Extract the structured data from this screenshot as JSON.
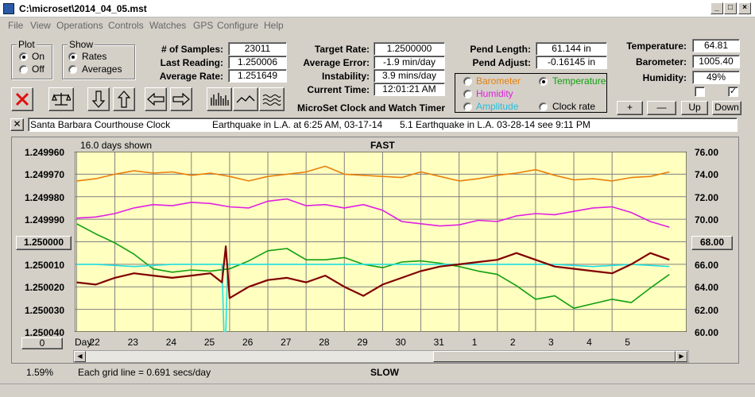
{
  "window": {
    "title": "C:\\microset\\2014_04_05.mst"
  },
  "menu": [
    "File",
    "View",
    "Operations",
    "Controls",
    "Watches",
    "GPS",
    "Configure",
    "Help"
  ],
  "plot_group": {
    "title": "Plot",
    "on": "On",
    "off": "Off",
    "selected": "On"
  },
  "show_group": {
    "title": "Show",
    "rates": "Rates",
    "averages": "Averages",
    "selected": "Rates"
  },
  "stats": {
    "samples_label": "# of Samples:",
    "samples": "23011",
    "last_reading_label": "Last Reading:",
    "last_reading": "1.250006",
    "average_rate_label": "Average Rate:",
    "average_rate": "1.251649"
  },
  "targets": {
    "target_rate_label": "Target Rate:",
    "target_rate": "1.2500000",
    "average_error_label": "Average Error:",
    "average_error": "-1.9 min/day",
    "instability_label": "Instability:",
    "instability": "3.9 mins/day",
    "current_time_label": "Current Time:",
    "current_time": "12:01:21 AM"
  },
  "pendulum": {
    "length_label": "Pend Length:",
    "length": "61.144 in",
    "adjust_label": "Pend Adjust:",
    "adjust": "-0.16145 in"
  },
  "sensor_select": {
    "barometer": "Barometer",
    "temperature": "Temperature",
    "humidity": "Humidity",
    "amplitude": "Amplitude",
    "clock_rate": "Clock rate",
    "selected": "Temperature"
  },
  "environment": {
    "temperature_label": "Temperature:",
    "temperature": "64.81",
    "barometer_label": "Barometer:",
    "barometer": "1005.40",
    "humidity_label": "Humidity:",
    "humidity": "49%",
    "check2_mark": "✓"
  },
  "adjust_buttons": {
    "plus": "+",
    "minus": "—",
    "up": "Up",
    "down": "Down"
  },
  "app_caption": "MicroSet Clock and Watch Timer",
  "notes": {
    "clock_name": "Santa Barbara Courthouse Clock",
    "note1": "Earthquake in L.A. at 6:25 AM, 03-17-14",
    "note2": "5.1 Earthquake in L.A. 03-28-14  see 9:11 PM"
  },
  "chart": {
    "days_shown": "16.0 days shown",
    "top_label": "FAST",
    "bottom_label": "SLOW",
    "grid_note": "Each grid line = 0.691 secs/day",
    "percent": "1.59%",
    "day_label": "Day:",
    "left_center_value": "1.250000",
    "right_center_value": "68.00",
    "left_bottom_button": "0"
  },
  "chart_data": {
    "type": "line",
    "y_left_ticks": [
      "1.249960",
      "1.249970",
      "1.249980",
      "1.249990",
      "1.250000",
      "1.250010",
      "1.250020",
      "1.250030",
      "1.250040"
    ],
    "y_right_ticks": [
      "76.00",
      "74.00",
      "72.00",
      "70.00",
      "68.00",
      "66.00",
      "64.00",
      "62.00",
      "60.00"
    ],
    "x_ticks": [
      "22",
      "23",
      "24",
      "25",
      "26",
      "27",
      "28",
      "29",
      "30",
      "31",
      "1",
      "2",
      "3",
      "4",
      "5"
    ],
    "ylim_left": [
      1.24996,
      1.25004
    ],
    "ylim_right": [
      60,
      76
    ],
    "x_domain": [
      21.45,
      37.45
    ],
    "series": [
      {
        "color": "#e8800a",
        "axis": "right",
        "x": [
          21.5,
          22,
          22.5,
          23,
          23.5,
          24,
          24.5,
          25,
          25.5,
          26,
          26.5,
          27,
          27.5,
          28,
          28.5,
          29,
          29.5,
          30,
          30.5,
          31,
          31.5,
          32,
          32.5,
          33,
          33.5,
          34,
          34.5,
          35,
          35.5,
          36,
          36.5,
          37
        ],
        "y": [
          73.4,
          73.6,
          74.0,
          74.3,
          74.1,
          74.2,
          73.9,
          74.1,
          73.8,
          73.4,
          73.8,
          74.0,
          74.2,
          74.7,
          74.0,
          73.9,
          73.8,
          73.7,
          74.2,
          73.8,
          73.4,
          73.6,
          73.9,
          74.1,
          74.4,
          73.9,
          73.5,
          73.6,
          73.4,
          73.7,
          73.8,
          74.2
        ]
      },
      {
        "color": "#e020e0",
        "axis": "right",
        "x": [
          21.5,
          22,
          22.5,
          23,
          23.5,
          24,
          24.5,
          25,
          25.5,
          26,
          26.5,
          27,
          27.5,
          28,
          28.5,
          29,
          29.5,
          30,
          30.5,
          31,
          31.5,
          32,
          32.5,
          33,
          33.5,
          34,
          34.5,
          35,
          35.5,
          36,
          36.5,
          37
        ],
        "y": [
          70.1,
          70.2,
          70.5,
          71.0,
          71.3,
          71.2,
          71.5,
          71.4,
          71.1,
          71.0,
          71.6,
          71.8,
          71.2,
          71.3,
          71.0,
          71.3,
          70.8,
          69.8,
          69.6,
          69.4,
          69.5,
          69.9,
          69.8,
          70.3,
          70.5,
          70.4,
          70.7,
          71.0,
          71.1,
          70.6,
          69.8,
          69.3
        ]
      },
      {
        "color": "#10a010",
        "axis": "right",
        "x": [
          21.5,
          22,
          22.5,
          23,
          23.5,
          24,
          24.5,
          25,
          25.5,
          26,
          26.5,
          27,
          27.5,
          28,
          28.5,
          29,
          29.5,
          30,
          30.5,
          31,
          31.5,
          32,
          32.5,
          33,
          33.5,
          34,
          34.5,
          35,
          35.5,
          36,
          36.5,
          37
        ],
        "y": [
          69.6,
          68.7,
          67.9,
          66.9,
          65.6,
          65.3,
          65.5,
          65.4,
          65.6,
          66.3,
          67.2,
          67.4,
          66.4,
          66.4,
          66.6,
          66.0,
          65.7,
          66.2,
          66.3,
          66.1,
          65.8,
          65.4,
          65.1,
          64.1,
          62.9,
          63.2,
          62.1,
          62.5,
          62.9,
          62.6,
          63.9,
          65.1
        ]
      },
      {
        "color": "#20e0e0",
        "axis": "left",
        "x": [
          21.5,
          22,
          23,
          24,
          25,
          25.3,
          25.35,
          25.4,
          25.45,
          25.5,
          26,
          27,
          28,
          29,
          30,
          31,
          32,
          33,
          34,
          35,
          36,
          37
        ],
        "y": [
          1.25001,
          1.25001,
          1.250011,
          1.25001,
          1.25001,
          1.25001,
          1.25004,
          1.25004,
          1.25001,
          1.25001,
          1.25001,
          1.25001,
          1.25001,
          1.25001,
          1.25001,
          1.25001,
          1.25001,
          1.25001,
          1.25001,
          1.250011,
          1.25001,
          1.250011
        ]
      },
      {
        "color": "#800000",
        "axis": "left",
        "x": [
          21.5,
          22,
          22.5,
          23,
          23.5,
          24,
          24.5,
          25,
          25.3,
          25.4,
          25.5,
          26,
          26.5,
          27,
          27.5,
          28,
          28.5,
          29,
          29.5,
          30,
          30.5,
          31,
          31.5,
          32,
          32.5,
          33,
          33.5,
          34,
          34.5,
          35,
          35.5,
          36,
          36.5,
          37
        ],
        "y": [
          1.250018,
          1.250019,
          1.250016,
          1.250014,
          1.250015,
          1.250016,
          1.250015,
          1.250014,
          1.250018,
          1.250002,
          1.250025,
          1.25002,
          1.250017,
          1.250016,
          1.250018,
          1.250015,
          1.25002,
          1.250024,
          1.250019,
          1.250016,
          1.250013,
          1.250011,
          1.25001,
          1.250009,
          1.250008,
          1.250005,
          1.250008,
          1.250011,
          1.250012,
          1.250013,
          1.250014,
          1.25001,
          1.250005,
          1.250008
        ]
      }
    ]
  }
}
